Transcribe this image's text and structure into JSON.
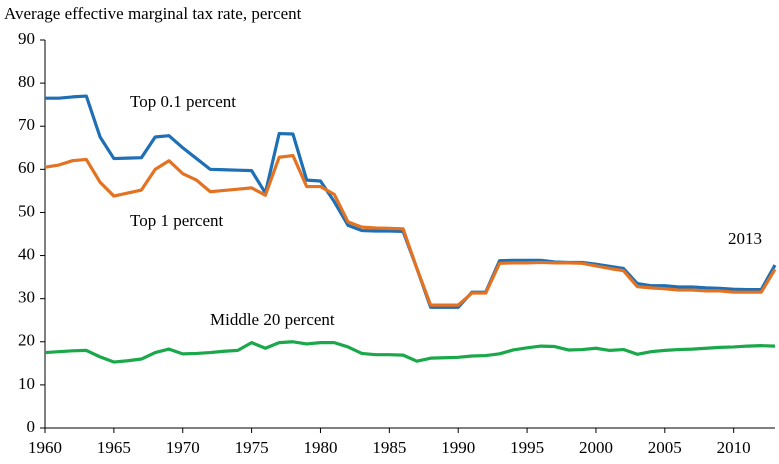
{
  "chart_data": {
    "type": "line",
    "title": "Average effective marginal tax rate, percent",
    "x": [
      1960,
      1961,
      1962,
      1963,
      1964,
      1965,
      1966,
      1967,
      1968,
      1969,
      1970,
      1971,
      1972,
      1973,
      1974,
      1975,
      1976,
      1977,
      1978,
      1979,
      1980,
      1981,
      1982,
      1983,
      1984,
      1985,
      1986,
      1987,
      1988,
      1989,
      1990,
      1991,
      1992,
      1993,
      1994,
      1995,
      1996,
      1997,
      1998,
      1999,
      2000,
      2001,
      2002,
      2003,
      2004,
      2005,
      2006,
      2007,
      2008,
      2009,
      2010,
      2011,
      2012,
      2013
    ],
    "series": [
      {
        "name": "Top 0.1 percent",
        "color": "#1f6fb4",
        "values": [
          76.5,
          76.5,
          76.8,
          77,
          67.5,
          62.5,
          62.6,
          62.7,
          67.5,
          67.8,
          65,
          62.5,
          60,
          59.9,
          59.8,
          59.7,
          54.5,
          68.3,
          68.2,
          57.5,
          57.3,
          52.5,
          47,
          45.8,
          45.7,
          45.7,
          45.6,
          37,
          28,
          28,
          28,
          31.5,
          31.5,
          38.8,
          38.9,
          38.9,
          38.9,
          38.5,
          38.4,
          38.4,
          38,
          37.5,
          37,
          33.5,
          33,
          33,
          32.7,
          32.7,
          32.5,
          32.4,
          32.2,
          32.1,
          32.1,
          37.8
        ]
      },
      {
        "name": "Top 1 percent",
        "color": "#e37222",
        "values": [
          60.5,
          61,
          62,
          62.3,
          57,
          53.8,
          54.5,
          55.2,
          60,
          62,
          59,
          57.5,
          54.8,
          55.1,
          55.4,
          55.7,
          54,
          62.8,
          63.2,
          56,
          56,
          54.2,
          47.8,
          46.6,
          46.4,
          46.3,
          46.2,
          37,
          28.5,
          28.5,
          28.5,
          31.3,
          31.3,
          38.2,
          38.3,
          38.3,
          38.4,
          38.3,
          38.3,
          38.2,
          37.6,
          37,
          36.5,
          32.8,
          32.5,
          32.3,
          32,
          32,
          31.8,
          31.8,
          31.5,
          31.5,
          31.5,
          36.8
        ]
      },
      {
        "name": "Middle 20 percent",
        "color": "#1aa84a",
        "values": [
          17.5,
          17.7,
          17.9,
          18,
          16.5,
          15.3,
          15.6,
          16,
          17.5,
          18.3,
          17.2,
          17.3,
          17.5,
          17.8,
          18,
          19.8,
          18.5,
          19.8,
          20,
          19.5,
          19.8,
          19.8,
          18.8,
          17.3,
          17,
          17,
          16.9,
          15.5,
          16.2,
          16.3,
          16.4,
          16.7,
          16.8,
          17.2,
          18.1,
          18.6,
          19,
          18.9,
          18.1,
          18.2,
          18.5,
          18,
          18.2,
          17.1,
          17.7,
          18,
          18.2,
          18.3,
          18.5,
          18.7,
          18.8,
          19,
          19.1,
          19
        ]
      }
    ],
    "annotations": [
      "2013"
    ],
    "xlim": [
      1960,
      2013
    ],
    "xticks": [
      1960,
      1965,
      1970,
      1975,
      1980,
      1985,
      1990,
      1995,
      2000,
      2005,
      2010
    ],
    "ylim": [
      0,
      90
    ],
    "yticks": [
      0,
      10,
      20,
      30,
      40,
      50,
      60,
      70,
      80,
      90
    ]
  }
}
